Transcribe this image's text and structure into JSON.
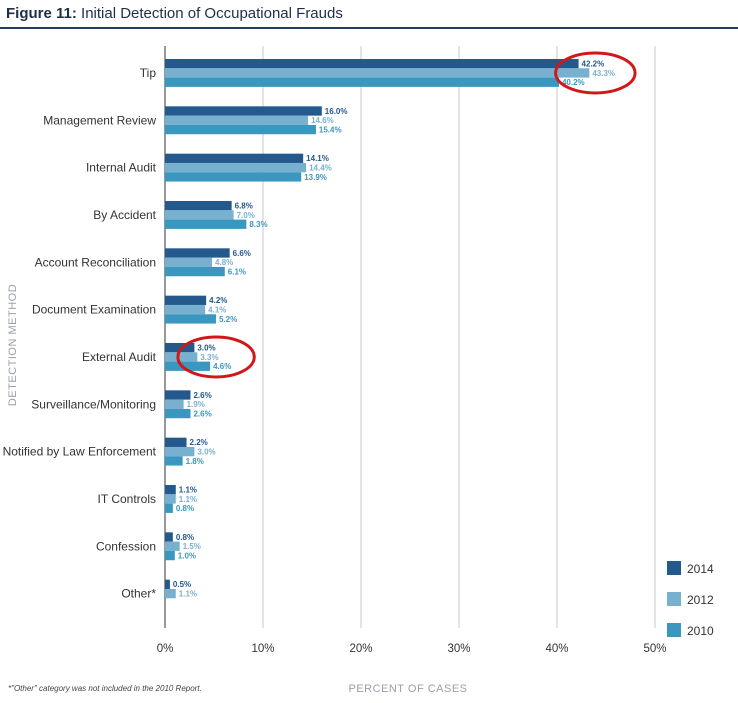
{
  "figure": {
    "label": "Figure 11:",
    "title": "Initial Detection of Occupational Frauds"
  },
  "footnote": "*\"Other\" category was not included in the 2010 Report.",
  "colors": {
    "2014": "#23598c",
    "2012": "#78b1d0",
    "2010": "#3a97bf",
    "highlight": "#d01818",
    "grid": "#c8c8c8",
    "axis": "#555555"
  },
  "chart_data": {
    "type": "bar",
    "orientation": "horizontal",
    "title": "Initial Detection of Occupational Frauds",
    "xlabel": "PERCENT OF CASES",
    "ylabel": "DETECTION METHOD",
    "xlim": [
      0,
      50
    ],
    "xticks": [
      "0%",
      "10%",
      "20%",
      "30%",
      "40%",
      "50%"
    ],
    "grid": "vertical",
    "legend": "bottom-right",
    "categories": [
      "Tip",
      "Management Review",
      "Internal Audit",
      "By Accident",
      "Account Reconciliation",
      "Document Examination",
      "External Audit",
      "Surveillance/Monitoring",
      "Notified by Law Enforcement",
      "IT Controls",
      "Confession",
      "Other*"
    ],
    "series": [
      {
        "name": "2014",
        "values": [
          42.2,
          16.0,
          14.1,
          6.8,
          6.6,
          4.2,
          3.0,
          2.6,
          2.2,
          1.1,
          0.8,
          0.5
        ],
        "labels": [
          "42.2%",
          "16.0%",
          "14.1%",
          "6.8%",
          "6.6%",
          "4.2%",
          "3.0%",
          "2.6%",
          "2.2%",
          "1.1%",
          "0.8%",
          "0.5%"
        ]
      },
      {
        "name": "2012",
        "values": [
          43.3,
          14.6,
          14.4,
          7.0,
          4.8,
          4.1,
          3.3,
          1.9,
          3.0,
          1.1,
          1.5,
          1.1
        ],
        "labels": [
          "43.3%",
          "14.6%",
          "14.4%",
          "7.0%",
          "4.8%",
          "4.1%",
          "3.3%",
          "1.9%",
          "3.0%",
          "1.1%",
          "1.5%",
          "1.1%"
        ]
      },
      {
        "name": "2010",
        "values": [
          40.2,
          15.4,
          13.9,
          8.3,
          6.1,
          5.2,
          4.6,
          2.6,
          1.8,
          0.8,
          1.0,
          null
        ],
        "labels": [
          "40.2%",
          "15.4%",
          "13.9%",
          "8.3%",
          "6.1%",
          "5.2%",
          "4.6%",
          "2.6%",
          "1.8%",
          "0.8%",
          "1.0%",
          null
        ]
      }
    ],
    "highlights": [
      "Tip",
      "External Audit"
    ]
  }
}
